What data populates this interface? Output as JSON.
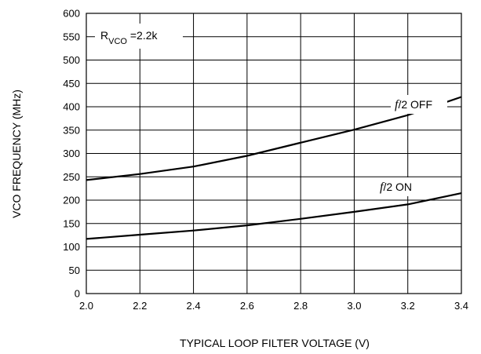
{
  "chart_data": {
    "type": "line",
    "title": "",
    "xlabel": "TYPICAL LOOP FILTER VOLTAGE (V)",
    "ylabel": "VCO FREQUENCY (MHz)",
    "xlim": [
      2.0,
      3.4
    ],
    "ylim": [
      0,
      600
    ],
    "xticks": [
      "2.0",
      "2.2",
      "2.4",
      "2.6",
      "2.8",
      "3.0",
      "3.2",
      "3.4"
    ],
    "yticks": [
      "0",
      "50",
      "100",
      "150",
      "200",
      "250",
      "300",
      "350",
      "400",
      "450",
      "500",
      "550",
      "600"
    ],
    "grid": true,
    "annotation": {
      "prefix": "R",
      "subscript": "VCO",
      "suffix": " =2.2k"
    },
    "series": [
      {
        "name": "f/2 OFF",
        "label_italic": "f",
        "label_rest": "/2 OFF",
        "x": [
          2.0,
          2.2,
          2.4,
          2.6,
          2.8,
          3.0,
          3.2,
          3.4
        ],
        "y": [
          243,
          256,
          272,
          295,
          323,
          351,
          382,
          421
        ]
      },
      {
        "name": "f/2 ON",
        "label_italic": "f",
        "label_rest": "/2 ON",
        "x": [
          2.0,
          2.2,
          2.4,
          2.6,
          2.8,
          3.0,
          3.2,
          3.4
        ],
        "y": [
          117,
          126,
          135,
          146,
          160,
          175,
          191,
          215
        ]
      }
    ]
  }
}
